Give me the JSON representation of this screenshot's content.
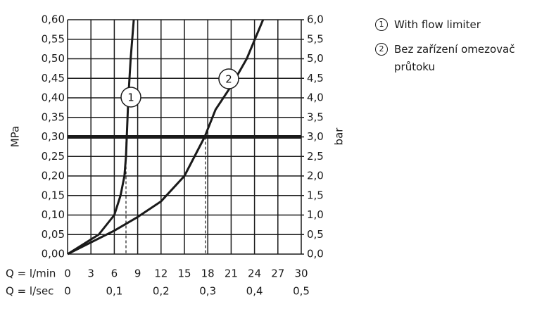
{
  "chart_data": {
    "type": "line",
    "xlabel": "Q = l/min",
    "x2label": "Q = l/sec",
    "ylabel": "MPa",
    "y2label": "bar",
    "xlim": [
      0,
      30
    ],
    "xticks": [
      0,
      3,
      6,
      9,
      12,
      15,
      18,
      21,
      24,
      27,
      30
    ],
    "x2lim": [
      0,
      0.5
    ],
    "x2ticks": [
      0,
      {
        "value": 0.1,
        "label": "0,1"
      },
      {
        "value": 0.2,
        "label": "0,2"
      },
      {
        "value": 0.3,
        "label": "0,3"
      },
      {
        "value": 0.4,
        "label": "0,4"
      },
      {
        "value": 0.5,
        "label": "0,5"
      }
    ],
    "ylim": [
      0,
      0.6
    ],
    "yticks": [
      {
        "value": 0,
        "label": "0,00"
      },
      {
        "value": 0.05,
        "label": "0,05"
      },
      {
        "value": 0.1,
        "label": "0,10"
      },
      {
        "value": 0.15,
        "label": "0,15"
      },
      {
        "value": 0.2,
        "label": "0,20"
      },
      {
        "value": 0.25,
        "label": "0,25"
      },
      {
        "value": 0.3,
        "label": "0,30"
      },
      {
        "value": 0.35,
        "label": "0,35"
      },
      {
        "value": 0.4,
        "label": "0,40"
      },
      {
        "value": 0.45,
        "label": "0,45"
      },
      {
        "value": 0.5,
        "label": "0,50"
      },
      {
        "value": 0.55,
        "label": "0,55"
      },
      {
        "value": 0.6,
        "label": "0,60"
      }
    ],
    "y2lim": [
      0,
      6
    ],
    "y2ticks": [
      {
        "value": 0,
        "label": "0,0"
      },
      {
        "value": 0.5,
        "label": "0,5"
      },
      {
        "value": 1,
        "label": "1,0"
      },
      {
        "value": 1.5,
        "label": "1,5"
      },
      {
        "value": 2,
        "label": "2,0"
      },
      {
        "value": 2.5,
        "label": "2,5"
      },
      {
        "value": 3,
        "label": "3,0"
      },
      {
        "value": 3.5,
        "label": "3,5"
      },
      {
        "value": 4,
        "label": "4,0"
      },
      {
        "value": 4.5,
        "label": "4,5"
      },
      {
        "value": 5,
        "label": "5,0"
      },
      {
        "value": 5.5,
        "label": "5,5"
      },
      {
        "value": 6,
        "label": "6,0"
      }
    ],
    "grid": true,
    "reference_lines": {
      "y": 0.3,
      "x": [
        7.5,
        17.7
      ]
    },
    "series": [
      {
        "name": "With flow limiter",
        "label": "1",
        "color": "#1a1a1a",
        "x": [
          0,
          2,
          4,
          6,
          6.8,
          7.3,
          7.5,
          7.6,
          7.8,
          8.1,
          8.5
        ],
        "values": [
          0,
          0.025,
          0.05,
          0.1,
          0.15,
          0.2,
          0.25,
          0.3,
          0.4,
          0.5,
          0.6
        ]
      },
      {
        "name": "Bez zařízení omezovač průtoku",
        "label": "2",
        "color": "#1a1a1a",
        "x": [
          0,
          3,
          6,
          9,
          12,
          15,
          17.6,
          19,
          21,
          23,
          25.1
        ],
        "values": [
          0,
          0.03,
          0.06,
          0.095,
          0.135,
          0.2,
          0.3,
          0.37,
          0.43,
          0.5,
          0.6
        ]
      }
    ]
  }
}
